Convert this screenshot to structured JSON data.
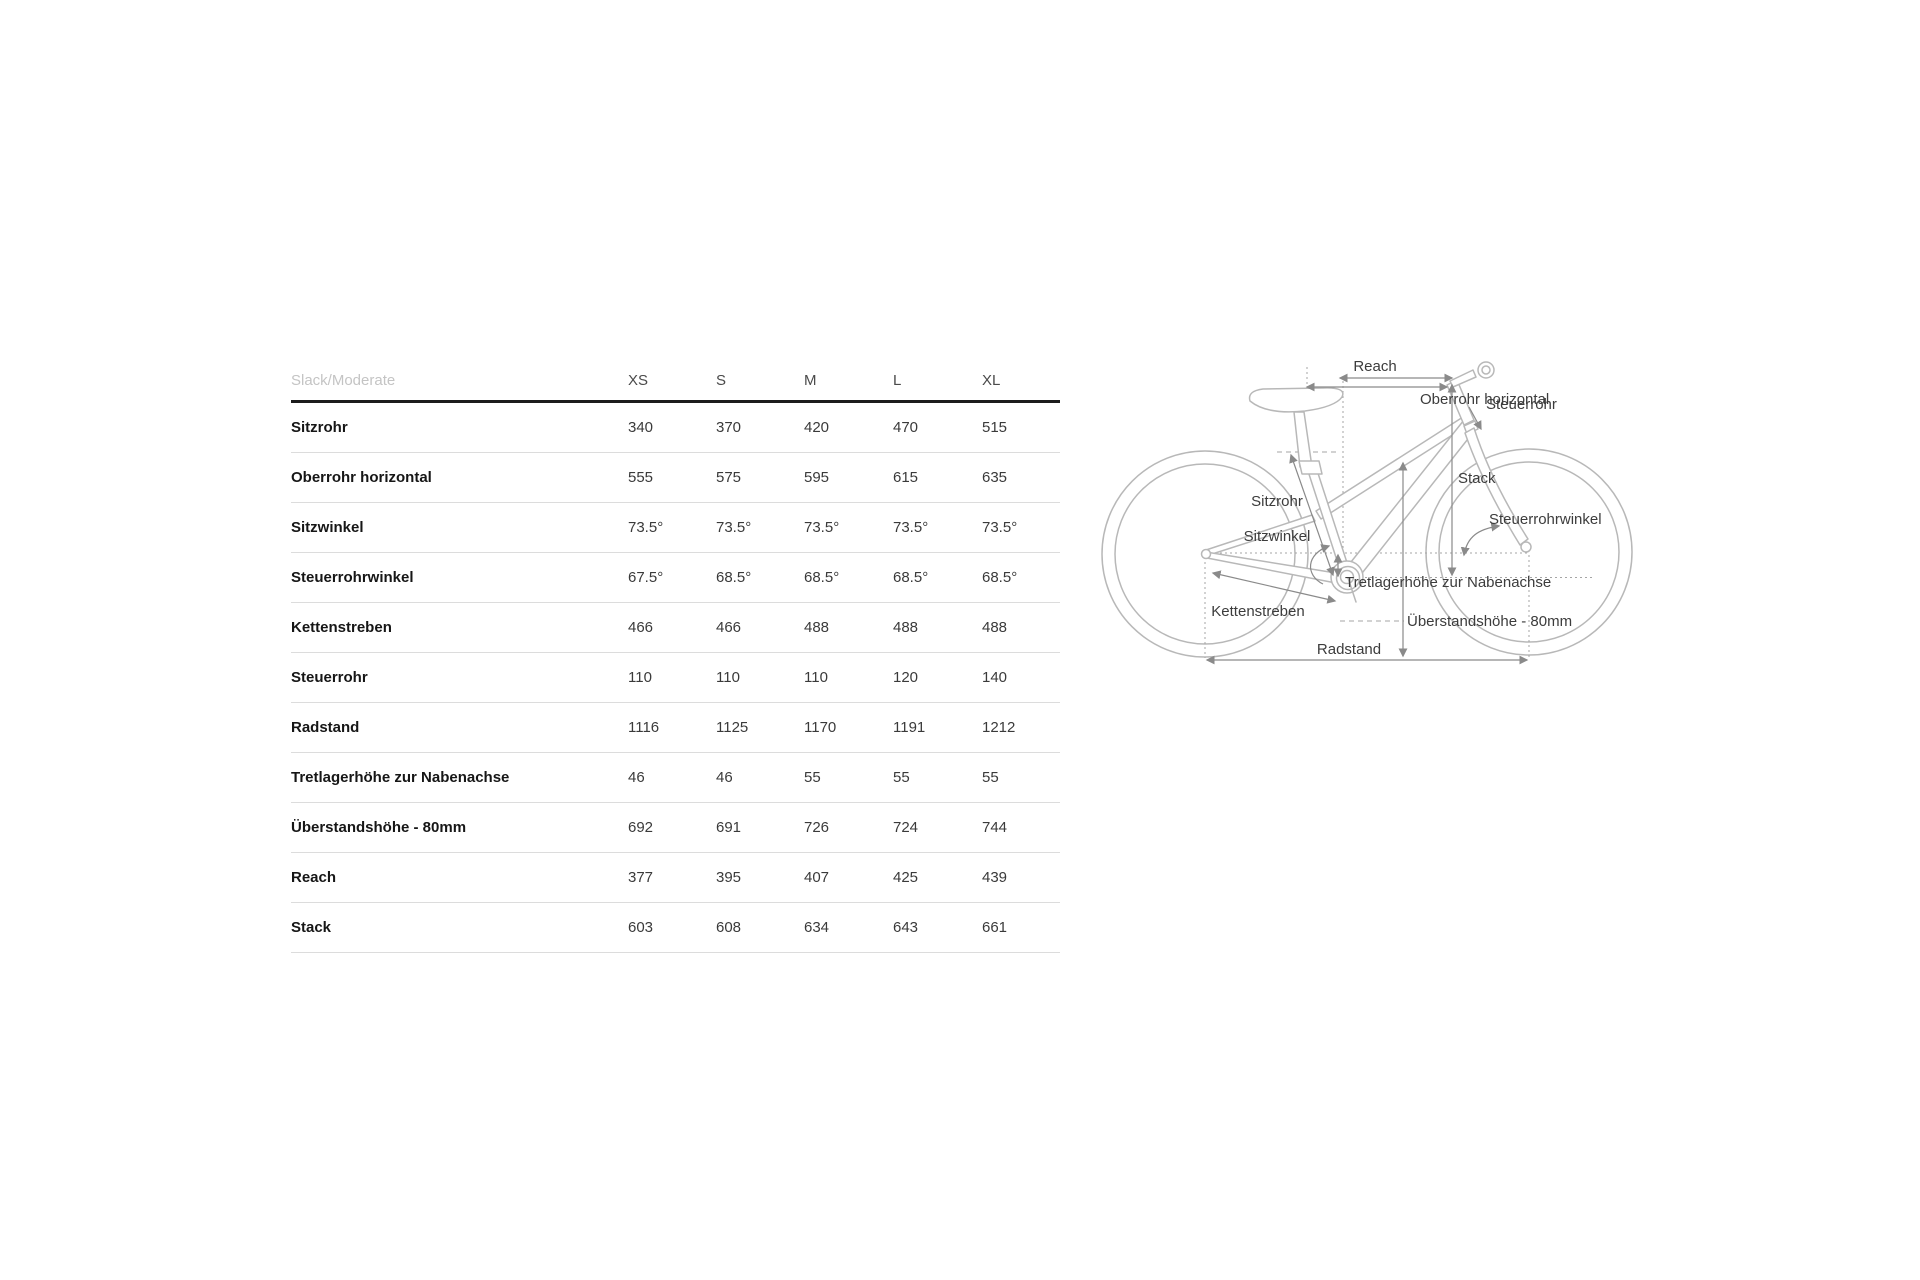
{
  "table": {
    "header": {
      "title": "Slack/Moderate",
      "sizes": [
        "XS",
        "S",
        "M",
        "L",
        "XL"
      ]
    },
    "rows": [
      {
        "label": "Sitzrohr",
        "values": [
          "340",
          "370",
          "420",
          "470",
          "515"
        ]
      },
      {
        "label": "Oberrohr horizontal",
        "values": [
          "555",
          "575",
          "595",
          "615",
          "635"
        ]
      },
      {
        "label": "Sitzwinkel",
        "values": [
          "73.5°",
          "73.5°",
          "73.5°",
          "73.5°",
          "73.5°"
        ]
      },
      {
        "label": "Steuerrohrwinkel",
        "values": [
          "67.5°",
          "68.5°",
          "68.5°",
          "68.5°",
          "68.5°"
        ]
      },
      {
        "label": "Kettenstreben",
        "values": [
          "466",
          "466",
          "488",
          "488",
          "488"
        ]
      },
      {
        "label": "Steuerrohr",
        "values": [
          "110",
          "110",
          "110",
          "120",
          "140"
        ]
      },
      {
        "label": "Radstand",
        "values": [
          "1116",
          "1125",
          "1170",
          "1191",
          "1212"
        ]
      },
      {
        "label": "Tretlagerhöhe zur Nabenachse",
        "values": [
          "46",
          "46",
          "55",
          "55",
          "55"
        ]
      },
      {
        "label": "Überstandshöhe - 80mm",
        "values": [
          "692",
          "691",
          "726",
          "724",
          "744"
        ]
      },
      {
        "label": "Reach",
        "values": [
          "377",
          "395",
          "407",
          "425",
          "439"
        ]
      },
      {
        "label": "Stack",
        "values": [
          "603",
          "608",
          "634",
          "643",
          "661"
        ]
      }
    ]
  },
  "diagram": {
    "labels": {
      "reach": "Reach",
      "oberrohr": "Oberrohr horizontal",
      "steuerrohr": "Steuerrohr",
      "stack": "Stack",
      "sitzrohr": "Sitzrohr",
      "sitzwinkel": "Sitzwinkel",
      "steuerrohrwinkel": "Steuerrohrwinkel",
      "tretlagerhoehe": "Tretlagerhöhe zur Nabenachse",
      "kettenstreben": "Kettenstreben",
      "ueberstandshoehe": "Überstandshöhe - 80mm",
      "radstand": "Radstand"
    }
  },
  "colors": {
    "header_rule": "#1c1c1c",
    "row_divider": "#dcdcdc",
    "header_muted_text": "#c4c4c4",
    "table_text": "#3a3a3a",
    "bike_outline": "#b8b8b8",
    "measurement_lines": "#8a8a8a",
    "diagram_label_text": "#3c3c3c"
  }
}
